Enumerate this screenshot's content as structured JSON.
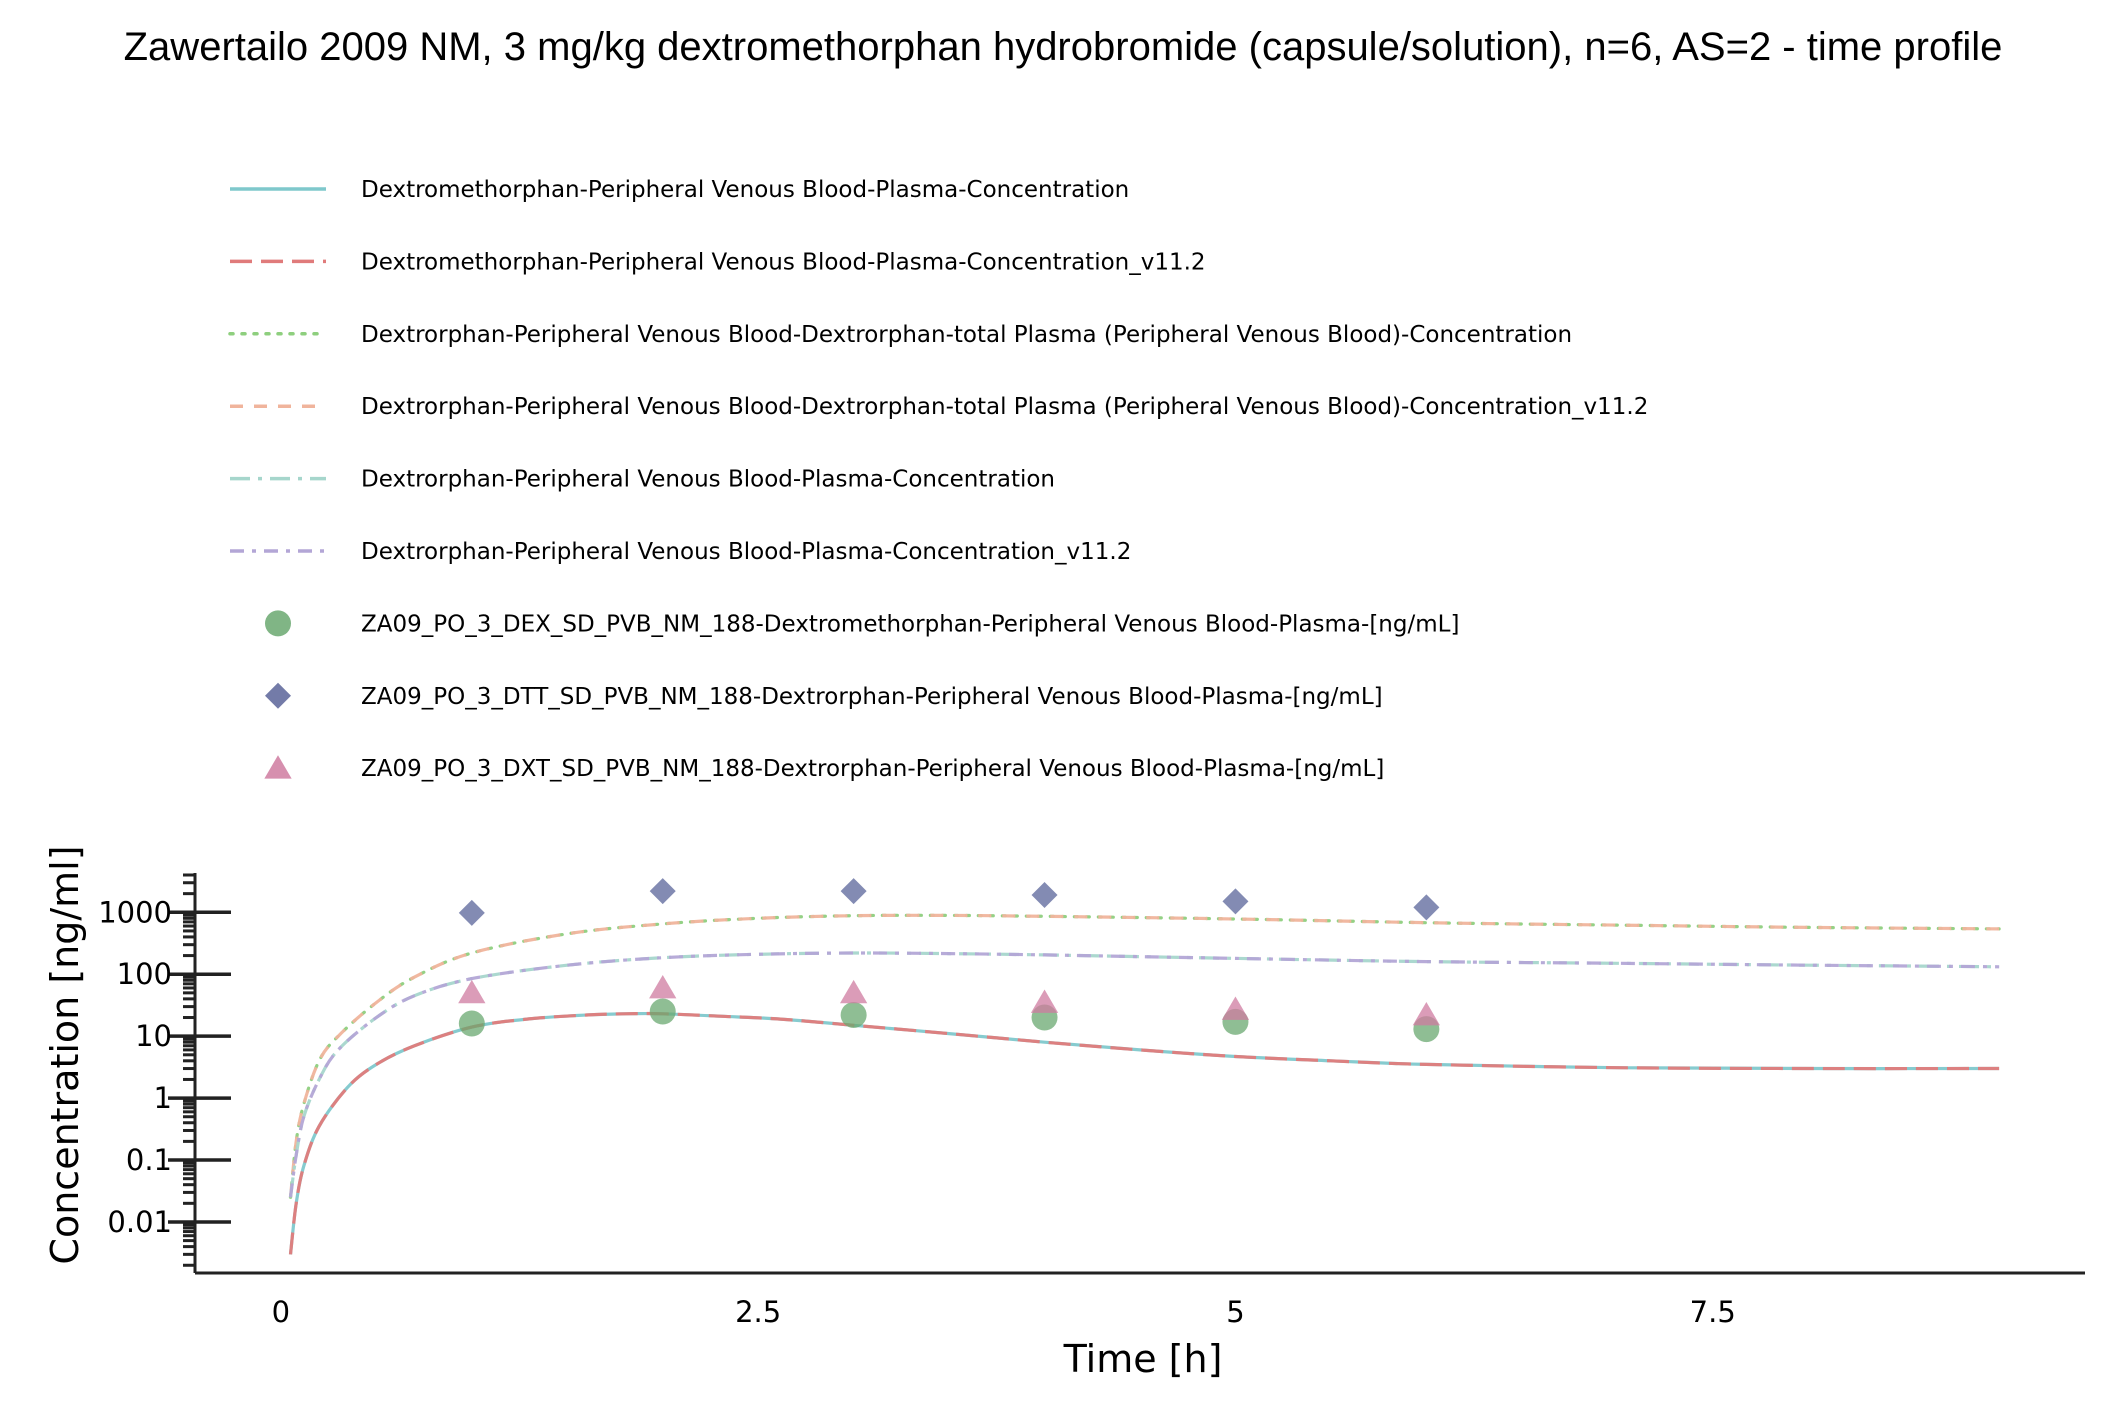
{
  "chart_data": {
    "type": "line",
    "title": "Zawertailo 2009 NM, 3 mg/kg dextromethorphan hydrobromide (capsule/solution), n=6, AS=2 - time profile",
    "xlabel": "Time [h]",
    "ylabel": "Concentration [ng/ml]",
    "xlim": [
      -0.45,
      9.45
    ],
    "ylim": [
      0.0015,
      4000
    ],
    "yscale": "log",
    "grid": false,
    "legend_position": "top",
    "x_ticks": [
      {
        "value": 0,
        "label": "0"
      },
      {
        "value": 2.5,
        "label": "2.5"
      },
      {
        "value": 5,
        "label": "5"
      },
      {
        "value": 7.5,
        "label": "7.5"
      }
    ],
    "y_ticks": [
      {
        "value": 0.01,
        "label": "0.01"
      },
      {
        "value": 0.1,
        "label": "0.1"
      },
      {
        "value": 1,
        "label": "1"
      },
      {
        "value": 10,
        "label": "10"
      },
      {
        "value": 100,
        "label": "100"
      },
      {
        "value": 1000,
        "label": "1000"
      }
    ],
    "series": [
      {
        "name": "Dextromethorphan-Peripheral Venous Blood-Plasma-Concentration",
        "kind": "line",
        "color": "#7fc8cc",
        "dash": "solid",
        "x": [
          0.05,
          0.08,
          0.12,
          0.2,
          0.35,
          0.5,
          0.7,
          1.0,
          1.3,
          1.6,
          1.8,
          2.0,
          2.3,
          2.6,
          3.0,
          3.5,
          4.0,
          4.5,
          5.0,
          5.5,
          6.0,
          7.0,
          8.0,
          9.0
        ],
        "y": [
          0.003,
          0.02,
          0.08,
          0.35,
          1.5,
          3.5,
          7.0,
          14.0,
          19.0,
          22.0,
          23.0,
          23.0,
          21.0,
          19.0,
          15.0,
          11.0,
          8.0,
          6.0,
          4.7,
          4.0,
          3.5,
          3.1,
          3.0,
          3.0
        ]
      },
      {
        "name": "Dextromethorphan-Peripheral Venous Blood-Plasma-Concentration_v11.2",
        "kind": "line",
        "color": "#e07b7b",
        "dash": "longdash",
        "x": [
          0.05,
          0.08,
          0.12,
          0.2,
          0.35,
          0.5,
          0.7,
          1.0,
          1.3,
          1.6,
          1.8,
          2.0,
          2.3,
          2.6,
          3.0,
          3.5,
          4.0,
          4.5,
          5.0,
          5.5,
          6.0,
          7.0,
          8.0,
          9.0
        ],
        "y": [
          0.003,
          0.02,
          0.08,
          0.35,
          1.5,
          3.5,
          7.0,
          14.0,
          19.0,
          22.0,
          23.0,
          23.0,
          21.0,
          19.0,
          15.0,
          11.0,
          8.0,
          6.0,
          4.7,
          4.0,
          3.5,
          3.1,
          3.0,
          3.0
        ]
      },
      {
        "name": "Dextrorphan-Peripheral Venous Blood-Dextrorphan-total Plasma (Peripheral Venous Blood)-Concentration",
        "kind": "line",
        "color": "#8ecf7e",
        "dash": "dotted",
        "x": [
          0.05,
          0.08,
          0.12,
          0.2,
          0.3,
          0.5,
          0.7,
          1.0,
          1.5,
          2.0,
          2.5,
          3.0,
          3.5,
          4.0,
          5.0,
          6.0,
          7.0,
          8.0,
          9.0
        ],
        "y": [
          0.025,
          0.2,
          0.8,
          4.0,
          10.0,
          35.0,
          90.0,
          220.0,
          450.0,
          650.0,
          800.0,
          880.0,
          890.0,
          860.0,
          780.0,
          680.0,
          620.0,
          570.0,
          540.0
        ]
      },
      {
        "name": "Dextrorphan-Peripheral Venous Blood-Dextrorphan-total Plasma (Peripheral Venous Blood)-Concentration_v11.2",
        "kind": "line",
        "color": "#f0b49c",
        "dash": "dashed",
        "x": [
          0.05,
          0.08,
          0.12,
          0.2,
          0.3,
          0.5,
          0.7,
          1.0,
          1.5,
          2.0,
          2.5,
          3.0,
          3.5,
          4.0,
          5.0,
          6.0,
          7.0,
          8.0,
          9.0
        ],
        "y": [
          0.025,
          0.2,
          0.8,
          4.0,
          10.0,
          35.0,
          90.0,
          220.0,
          450.0,
          650.0,
          800.0,
          880.0,
          890.0,
          860.0,
          780.0,
          680.0,
          620.0,
          570.0,
          540.0
        ]
      },
      {
        "name": "Dextrorphan-Peripheral Venous Blood-Plasma-Concentration",
        "kind": "line",
        "color": "#a6d6cc",
        "dash": "dashdot",
        "x": [
          0.05,
          0.08,
          0.12,
          0.2,
          0.3,
          0.5,
          0.7,
          1.0,
          1.5,
          2.0,
          2.5,
          3.0,
          3.5,
          4.0,
          5.0,
          6.0,
          7.0,
          8.0,
          9.0
        ],
        "y": [
          0.025,
          0.12,
          0.5,
          2.0,
          6.0,
          20.0,
          45.0,
          85.0,
          140.0,
          185.0,
          210.0,
          220.0,
          215.0,
          205.0,
          180.0,
          160.0,
          150.0,
          140.0,
          132.0
        ]
      },
      {
        "name": "Dextrorphan-Peripheral Venous Blood-Plasma-Concentration_v11.2",
        "kind": "line",
        "color": "#b3a6d6",
        "dash": "dashdot2",
        "x": [
          0.05,
          0.08,
          0.12,
          0.2,
          0.3,
          0.5,
          0.7,
          1.0,
          1.5,
          2.0,
          2.5,
          3.0,
          3.5,
          4.0,
          5.0,
          6.0,
          7.0,
          8.0,
          9.0
        ],
        "y": [
          0.025,
          0.12,
          0.5,
          2.0,
          6.0,
          20.0,
          45.0,
          85.0,
          140.0,
          185.0,
          210.0,
          220.0,
          215.0,
          205.0,
          180.0,
          160.0,
          150.0,
          140.0,
          132.0
        ]
      },
      {
        "name": "ZA09_PO_3_DEX_SD_PVB_NM_188-Dextromethorphan-Peripheral Venous Blood-Plasma-[ng/mL]",
        "kind": "scatter",
        "marker": "circle",
        "color": "#6aa870",
        "x": [
          1,
          2,
          3,
          4,
          5,
          6
        ],
        "y": [
          16,
          25,
          22,
          20,
          17,
          13
        ]
      },
      {
        "name": "ZA09_PO_3_DTT_SD_PVB_NM_188-Dextrorphan-Peripheral Venous Blood-Plasma-[ng/mL]",
        "kind": "scatter",
        "marker": "diamond",
        "color": "#5a6499",
        "x": [
          1,
          2,
          3,
          4,
          5,
          6
        ],
        "y": [
          980,
          2200,
          2200,
          1900,
          1500,
          1200
        ]
      },
      {
        "name": "ZA09_PO_3_DXT_SD_PVB_NM_188-Dextrorphan-Peripheral Venous Blood-Plasma-[ng/mL]",
        "kind": "scatter",
        "marker": "triangle",
        "color": "#cf7ba0",
        "x": [
          1,
          2,
          3,
          4,
          5,
          6
        ],
        "y": [
          50,
          60,
          50,
          35,
          27,
          22
        ]
      }
    ]
  }
}
